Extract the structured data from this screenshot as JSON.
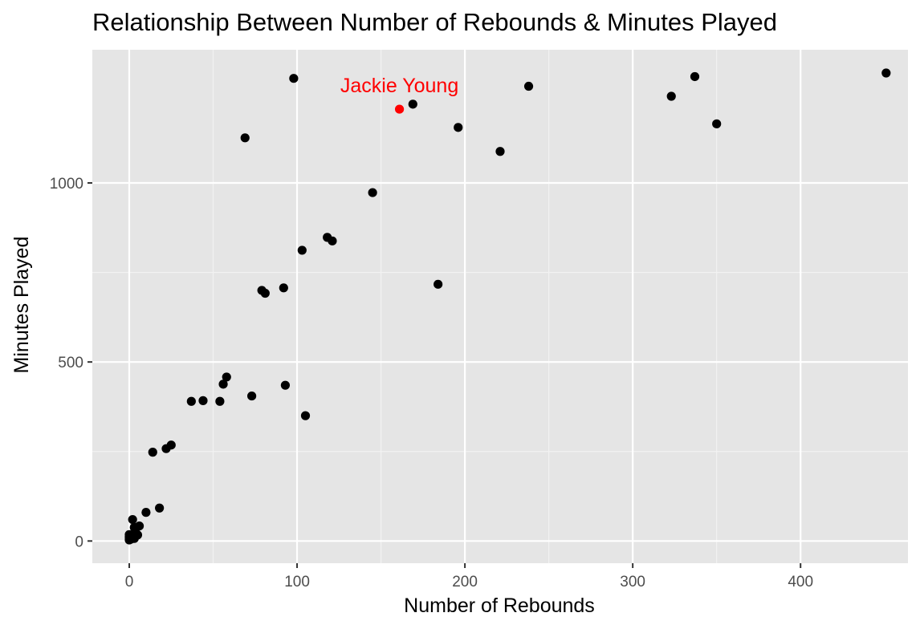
{
  "chart_data": {
    "type": "scatter",
    "title": "Relationship Between Number of Rebounds & Minutes Played",
    "xlabel": "Number of Rebounds",
    "ylabel": "Minutes Played",
    "xlim": [
      -22,
      464
    ],
    "ylim": [
      -62,
      1372
    ],
    "x_ticks": [
      0,
      100,
      200,
      300,
      400
    ],
    "y_ticks": [
      0,
      500,
      1000
    ],
    "grid": true,
    "background": "#e5e5e5",
    "point_color": "#000000",
    "highlight_color": "#ff0000",
    "points": [
      {
        "x": 0,
        "y": 3
      },
      {
        "x": 0,
        "y": 8
      },
      {
        "x": 0,
        "y": 12
      },
      {
        "x": 0,
        "y": 18
      },
      {
        "x": 1,
        "y": 5
      },
      {
        "x": 1,
        "y": 10
      },
      {
        "x": 2,
        "y": 15
      },
      {
        "x": 2,
        "y": 60
      },
      {
        "x": 3,
        "y": 7
      },
      {
        "x": 3,
        "y": 38
      },
      {
        "x": 4,
        "y": 22
      },
      {
        "x": 5,
        "y": 17
      },
      {
        "x": 6,
        "y": 42
      },
      {
        "x": 10,
        "y": 80
      },
      {
        "x": 14,
        "y": 248
      },
      {
        "x": 18,
        "y": 92
      },
      {
        "x": 22,
        "y": 258
      },
      {
        "x": 25,
        "y": 268
      },
      {
        "x": 37,
        "y": 390
      },
      {
        "x": 44,
        "y": 392
      },
      {
        "x": 54,
        "y": 390
      },
      {
        "x": 56,
        "y": 438
      },
      {
        "x": 58,
        "y": 458
      },
      {
        "x": 69,
        "y": 1126
      },
      {
        "x": 73,
        "y": 405
      },
      {
        "x": 79,
        "y": 700
      },
      {
        "x": 81,
        "y": 692
      },
      {
        "x": 92,
        "y": 707
      },
      {
        "x": 93,
        "y": 435
      },
      {
        "x": 98,
        "y": 1292
      },
      {
        "x": 103,
        "y": 812
      },
      {
        "x": 105,
        "y": 350
      },
      {
        "x": 118,
        "y": 848
      },
      {
        "x": 121,
        "y": 838
      },
      {
        "x": 145,
        "y": 973
      },
      {
        "x": 169,
        "y": 1220
      },
      {
        "x": 184,
        "y": 717
      },
      {
        "x": 196,
        "y": 1155
      },
      {
        "x": 221,
        "y": 1088
      },
      {
        "x": 238,
        "y": 1270
      },
      {
        "x": 323,
        "y": 1242
      },
      {
        "x": 337,
        "y": 1297
      },
      {
        "x": 350,
        "y": 1165
      },
      {
        "x": 451,
        "y": 1307
      }
    ],
    "highlight": {
      "x": 161,
      "y": 1206,
      "label": "Jackie Young"
    }
  }
}
